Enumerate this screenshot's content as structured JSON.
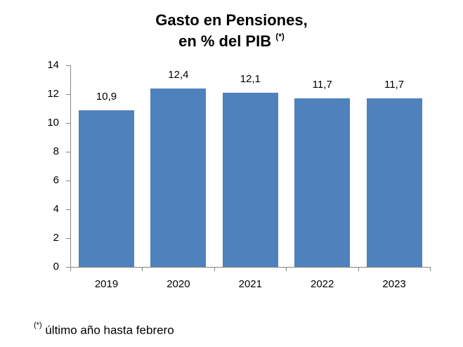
{
  "chart_data": {
    "type": "bar",
    "title": "Gasto en Pensiones,",
    "subtitle": "en % del PIB",
    "title_marker": "(*)",
    "categories": [
      "2019",
      "2020",
      "2021",
      "2022",
      "2023"
    ],
    "values": [
      10.9,
      12.4,
      12.1,
      11.7,
      11.7
    ],
    "value_labels": [
      "10,9",
      "12,4",
      "12,1",
      "11,7",
      "11,7"
    ],
    "xlabel": "",
    "ylabel": "",
    "ylim": [
      0,
      14
    ],
    "yticks": [
      "0",
      "2",
      "4",
      "6",
      "8",
      "10",
      "12",
      "14"
    ],
    "grid": false,
    "legend": null,
    "bar_color": "#4f81bd",
    "footnote_marker": "(*)",
    "footnote": "último año hasta febrero"
  }
}
